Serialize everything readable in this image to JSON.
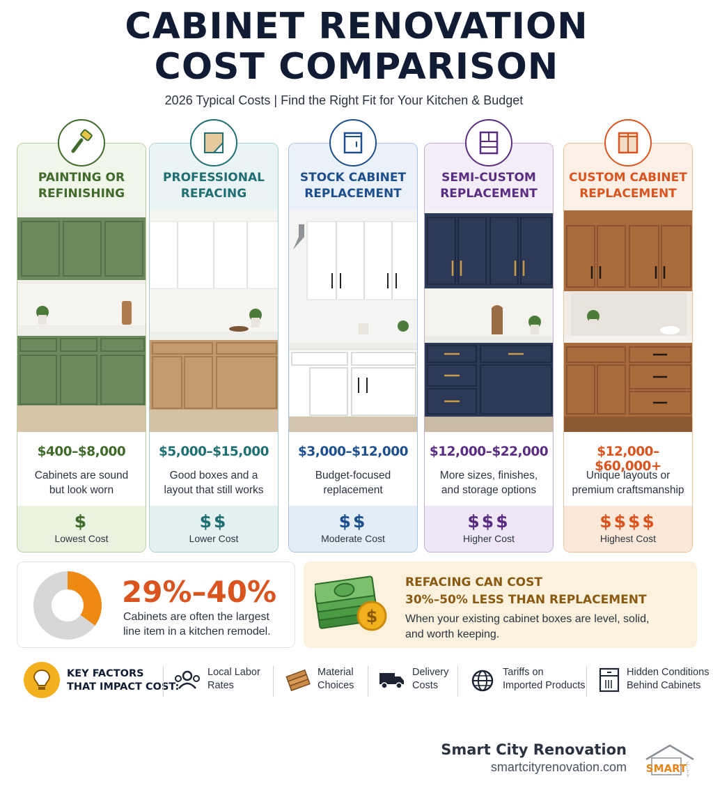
{
  "header": {
    "title_line1": "CABINET RENOVATION",
    "title_line2": "COST COMPARISON",
    "subtitle": "2026 Typical Costs | Find the Right Fit for Your Kitchen & Budget"
  },
  "cards": [
    {
      "title_line1": "PAINTING OR",
      "title_line2": "REFINISHING",
      "price": "$400–$8,000",
      "desc_line1": "Cabinets are sound",
      "desc_line2": "but look worn",
      "dollars": "$",
      "level": "Lowest Cost",
      "icon": "paintbrush-icon",
      "accent": "#3f6a2a"
    },
    {
      "title_line1": "PROFESSIONAL",
      "title_line2": "REFACING",
      "price": "$5,000–$15,000",
      "desc_line1": "Good boxes and a",
      "desc_line2": "layout that still works",
      "dollars": "$$",
      "level": "Lower Cost",
      "icon": "veneer-sheet-icon",
      "accent": "#1f6e72"
    },
    {
      "title_line1": "STOCK CABINET",
      "title_line2": "REPLACEMENT",
      "price": "$3,000–$12,000",
      "desc_line1": "Budget-focused",
      "desc_line2": "replacement",
      "dollars": "$$",
      "level": "Moderate Cost",
      "icon": "cabinet-icon",
      "accent": "#1d4f8c"
    },
    {
      "title_line1": "SEMI-CUSTOM",
      "title_line2": "REPLACEMENT",
      "price": "$12,000–$22,000",
      "desc_line1": "More sizes, finishes,",
      "desc_line2": "and storage options",
      "dollars": "$$$",
      "level": "Higher Cost",
      "icon": "cabinet-drawers-icon",
      "accent": "#5a2d82"
    },
    {
      "title_line1": "CUSTOM CABINET",
      "title_line2": "REPLACEMENT",
      "price": "$12,000–$60,000+",
      "desc_line1": "Unique layouts or",
      "desc_line2": "premium craftsmanship",
      "dollars": "$$$$",
      "level": "Highest Cost",
      "icon": "wood-cabinet-icon",
      "accent": "#d9541e"
    }
  ],
  "stat": {
    "value": "29%–40%",
    "text_line1": "Cabinets are often the largest",
    "text_line2": "line item in a kitchen remodel.",
    "share_of_remodel": 0.35
  },
  "refacing": {
    "head_line1": "REFACING CAN COST",
    "head_line2": "30%–50% LESS THAN REPLACEMENT",
    "text_line1": "When your existing cabinet boxes are level, solid,",
    "text_line2": "and worth keeping."
  },
  "factors": {
    "title_line1": "KEY FACTORS",
    "title_line2": "THAT IMPACT COST:",
    "items": [
      {
        "line1": "Local Labor",
        "line2": "Rates",
        "icon": "people-icon"
      },
      {
        "line1": "Material",
        "line2": "Choices",
        "icon": "lumber-icon"
      },
      {
        "line1": "Delivery",
        "line2": "Costs",
        "icon": "truck-icon"
      },
      {
        "line1": "Tariffs on",
        "line2": "Imported Products",
        "icon": "globe-icon"
      },
      {
        "line1": "Hidden Conditions",
        "line2": "Behind Cabinets",
        "icon": "cabinet-outline-icon"
      }
    ]
  },
  "footer": {
    "company": "Smart City Renovation",
    "url": "smartcityrenovation.com",
    "logo_text": "SMART"
  },
  "colors": {
    "title": "#0f1c33",
    "green": "#3f6a2a",
    "teal": "#1f6e72",
    "blue": "#1d4f8c",
    "purple": "#5a2d82",
    "orange": "#d9541e"
  }
}
